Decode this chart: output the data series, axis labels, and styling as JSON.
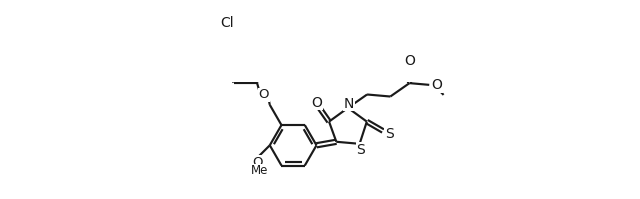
{
  "bg_color": "#ffffff",
  "line_color": "#1a1a1a",
  "lw": 1.55,
  "figsize": [
    6.4,
    1.99
  ],
  "dpi": 100,
  "xlim": [
    -0.5,
    12.5
  ],
  "ylim": [
    -1.2,
    3.8
  ],
  "BL": 1.0
}
